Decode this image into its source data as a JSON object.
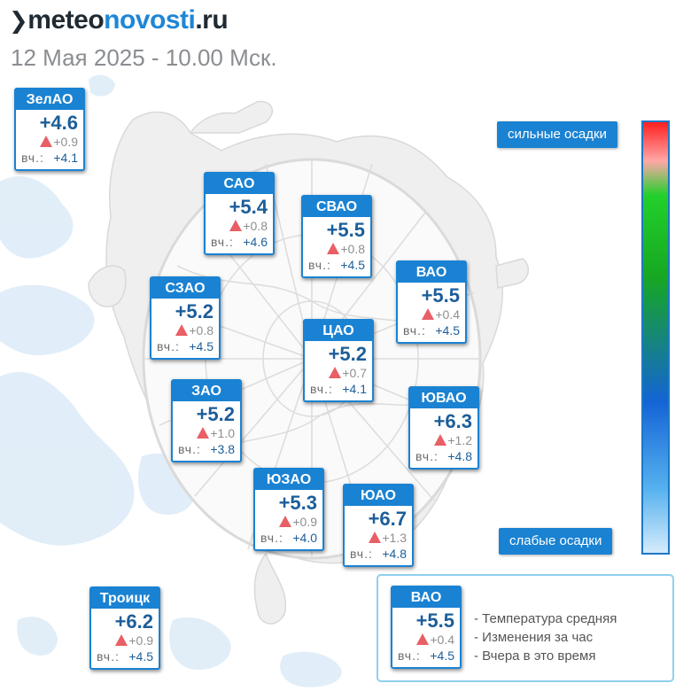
{
  "header": {
    "logo_mark": "❯",
    "logo_part1": "meteo",
    "logo_part2": "novosti",
    "logo_part3": ".ru",
    "subtitle": "12 Мая 2025 - 10.00 Мск."
  },
  "districts": [
    {
      "key": "zelao",
      "name": "ЗелАО",
      "temp": "+4.6",
      "change": "+0.9",
      "yesterday_label": "вч.:",
      "yesterday": "+4.1"
    },
    {
      "key": "sao",
      "name": "САО",
      "temp": "+5.4",
      "change": "+0.8",
      "yesterday_label": "вч.:",
      "yesterday": "+4.6"
    },
    {
      "key": "svao",
      "name": "СВАО",
      "temp": "+5.5",
      "change": "+0.8",
      "yesterday_label": "вч.:",
      "yesterday": "+4.5"
    },
    {
      "key": "vao",
      "name": "ВАО",
      "temp": "+5.5",
      "change": "+0.4",
      "yesterday_label": "вч.:",
      "yesterday": "+4.5"
    },
    {
      "key": "szao",
      "name": "СЗАО",
      "temp": "+5.2",
      "change": "+0.8",
      "yesterday_label": "вч.:",
      "yesterday": "+4.5"
    },
    {
      "key": "cao",
      "name": "ЦАО",
      "temp": "+5.2",
      "change": "+0.7",
      "yesterday_label": "вч.:",
      "yesterday": "+4.1"
    },
    {
      "key": "zao",
      "name": "ЗАО",
      "temp": "+5.2",
      "change": "+1.0",
      "yesterday_label": "вч.:",
      "yesterday": "+3.8"
    },
    {
      "key": "yuvao",
      "name": "ЮВАО",
      "temp": "+6.3",
      "change": "+1.2",
      "yesterday_label": "вч.:",
      "yesterday": "+4.8"
    },
    {
      "key": "yuzao",
      "name": "ЮЗАО",
      "temp": "+5.3",
      "change": "+0.9",
      "yesterday_label": "вч.:",
      "yesterday": "+4.0"
    },
    {
      "key": "yuao",
      "name": "ЮАО",
      "temp": "+6.7",
      "change": "+1.3",
      "yesterday_label": "вч.:",
      "yesterday": "+4.8"
    },
    {
      "key": "troick",
      "name": "Троицк",
      "temp": "+6.2",
      "change": "+0.9",
      "yesterday_label": "вч.:",
      "yesterday": "+4.5"
    }
  ],
  "precip_scale": {
    "label_strong": "сильные осадки",
    "label_weak": "слабые осадки",
    "colors": [
      "#ff1f1f",
      "#ffa7a7",
      "#22d02b",
      "#17a722",
      "#1464d6",
      "#55b1ee",
      "#d5ebfb"
    ]
  },
  "legend": {
    "sample": {
      "name": "ВАО",
      "temp": "+5.5",
      "change": "+0.4",
      "yesterday_label": "вч.:",
      "yesterday": "+4.5"
    },
    "line_temp": "- Температура средняя",
    "line_change": "- Изменения за час",
    "line_yesterday": "- Вчера в это время"
  },
  "colors": {
    "accent": "#1a82d2",
    "temp_text": "#1c5e99",
    "rise_triangle": "#e85f66",
    "rain_light": "#dcebf7"
  }
}
